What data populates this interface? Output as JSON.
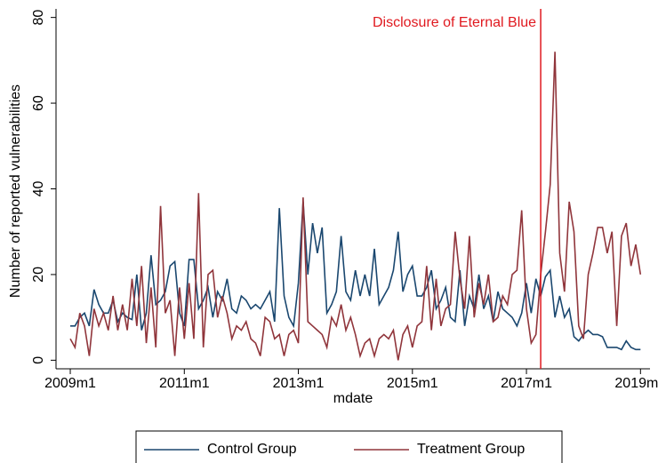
{
  "chart_data": {
    "type": "line",
    "x_label": "mdate",
    "y_label": "Number of reported vulnerabilities",
    "annotation": {
      "text": "Disclosure of Eternal Blue",
      "x": 687,
      "color": "#e0191f"
    },
    "xlim": [
      585,
      710
    ],
    "xticks": [
      {
        "value": 588,
        "label": "2009m1"
      },
      {
        "value": 612,
        "label": "2011m1"
      },
      {
        "value": 636,
        "label": "2013m1"
      },
      {
        "value": 660,
        "label": "2015m1"
      },
      {
        "value": 684,
        "label": "2017m1"
      },
      {
        "value": 708,
        "label": "2019m1"
      }
    ],
    "ylim": [
      -2,
      82
    ],
    "yticks": [
      0,
      20,
      40,
      60,
      80
    ],
    "grid": false,
    "legend": "bottom",
    "x": [
      588,
      589,
      590,
      591,
      592,
      593,
      594,
      595,
      596,
      597,
      598,
      599,
      600,
      601,
      602,
      603,
      604,
      605,
      606,
      607,
      608,
      609,
      610,
      611,
      612,
      613,
      614,
      615,
      616,
      617,
      618,
      619,
      620,
      621,
      622,
      623,
      624,
      625,
      626,
      627,
      628,
      629,
      630,
      631,
      632,
      633,
      634,
      635,
      636,
      637,
      638,
      639,
      640,
      641,
      642,
      643,
      644,
      645,
      646,
      647,
      648,
      649,
      650,
      651,
      652,
      653,
      654,
      655,
      656,
      657,
      658,
      659,
      660,
      661,
      662,
      663,
      664,
      665,
      666,
      667,
      668,
      669,
      670,
      671,
      672,
      673,
      674,
      675,
      676,
      677,
      678,
      679,
      680,
      681,
      682,
      683,
      684,
      685,
      686,
      687,
      688,
      689,
      690,
      691,
      692,
      693,
      694,
      695,
      696,
      697,
      698,
      699,
      700,
      701,
      702,
      703,
      704,
      705,
      706,
      707,
      708
    ],
    "series": [
      {
        "name": "Control Group",
        "color": "#1a476f",
        "values": [
          8,
          8,
          10,
          11,
          8,
          16.5,
          13,
          11,
          11,
          14,
          9,
          11,
          10,
          9.5,
          20,
          7,
          11,
          24.5,
          13,
          14,
          16,
          22,
          23,
          11,
          8,
          23.5,
          23.5,
          12,
          14,
          17,
          10,
          16,
          14,
          19,
          12,
          11,
          15,
          14,
          12,
          13,
          12,
          14,
          16,
          9,
          35.5,
          15,
          10,
          8,
          18,
          37,
          20,
          32,
          25,
          31,
          11,
          13,
          16,
          29,
          16,
          14,
          21,
          15,
          20,
          15,
          26,
          13,
          15,
          17,
          21,
          30,
          16,
          20,
          22,
          15,
          15,
          17,
          21,
          12,
          14,
          17,
          10,
          9,
          21,
          8,
          15,
          12,
          20,
          12,
          15,
          9,
          16,
          12,
          11,
          10,
          8,
          11,
          18,
          11,
          19,
          15,
          19.5,
          21,
          10,
          15,
          10,
          12,
          5.5,
          4.5,
          6,
          7,
          6,
          6,
          5.5,
          3,
          3,
          3,
          2.5,
          4.5,
          3,
          2.5,
          2.5
        ]
      },
      {
        "name": "Treatment Group",
        "color": "#90353b",
        "values": [
          5,
          3,
          11,
          8,
          1,
          12,
          8,
          11,
          7,
          15,
          7,
          13,
          7,
          19,
          8,
          22,
          4,
          17,
          3,
          36,
          11,
          14,
          1,
          17,
          5,
          18,
          5,
          39,
          3,
          20,
          21,
          10,
          15,
          11,
          5,
          8,
          7,
          9,
          5,
          4,
          1,
          10,
          9,
          5,
          6,
          1,
          6,
          7,
          4,
          38,
          9,
          8,
          7,
          6,
          3,
          10,
          8,
          13,
          7,
          10,
          6,
          1,
          4,
          5,
          1,
          5,
          6,
          5,
          7,
          0,
          6,
          8,
          3,
          8,
          9,
          22,
          7,
          19,
          8,
          12,
          13,
          30,
          19,
          12,
          29,
          10,
          18,
          13,
          20,
          9,
          10,
          15,
          13,
          20,
          21,
          35,
          12,
          4,
          6,
          20,
          30,
          41,
          72,
          25,
          16,
          37,
          30,
          8,
          5,
          20,
          25,
          31,
          31,
          25,
          30,
          8,
          29,
          32,
          22,
          27,
          20
        ]
      }
    ]
  }
}
